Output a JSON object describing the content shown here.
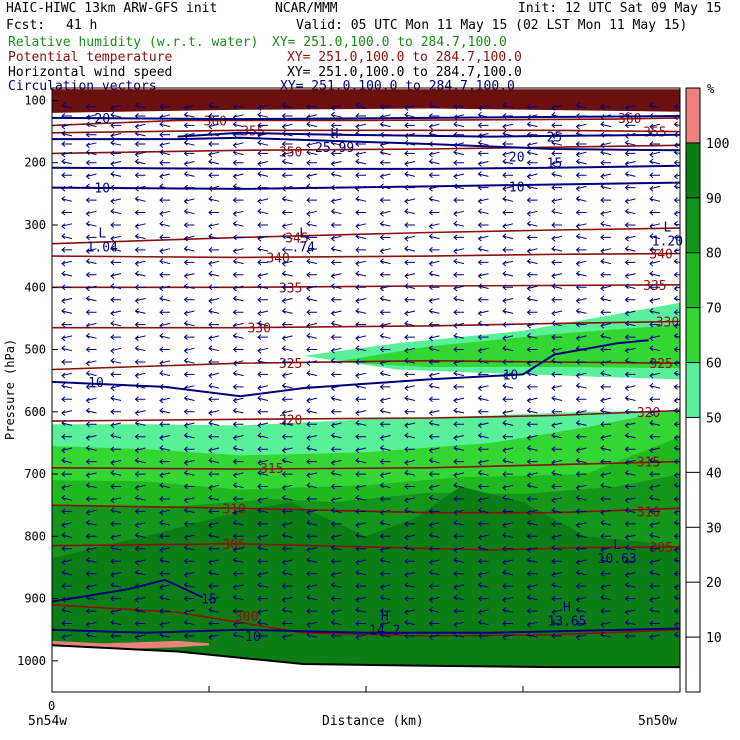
{
  "header": {
    "model": "HAIC-HIWC 13km ARW-GFS init",
    "org": "NCAR/MMM",
    "init": "Init: 12 UTC Sat 09 May 15",
    "fcst_label": "Fcst:",
    "fcst_value": "41 h",
    "valid": "Valid: 05 UTC Mon 11 May 15 (02 LST Mon 11 May 15)"
  },
  "fields": [
    {
      "name": "Relative humidity (w.r.t. water)",
      "xy": "XY= 251.0,100.0 to 284.7,100.0",
      "color": "#1a8c1a"
    },
    {
      "name": "Potential temperature",
      "xy": "XY= 251.0,100.0 to 284.7,100.0",
      "color": "#8b1010"
    },
    {
      "name": "Horizontal wind speed",
      "xy": "XY= 251.0,100.0 to 284.7,100.0",
      "color": "#000000"
    },
    {
      "name": "Circulation vectors",
      "xy": "XY= 251.0,100.0 to 284.7,100.0",
      "color": "#00007a"
    }
  ],
  "chart_data": {
    "type": "heatmap",
    "ylabel": "Pressure (hPa)",
    "xlabel": "Distance (km)",
    "x_range": [
      0,
      1
    ],
    "y_range": [
      1050,
      80
    ],
    "y_ticks": [
      100,
      200,
      300,
      400,
      500,
      600,
      700,
      800,
      900,
      1000
    ],
    "x_tick_zero": "0",
    "x_left_label": "5n54w",
    "x_right_label": "5n50w",
    "colorbar": {
      "unit": "%",
      "levels": [
        10,
        20,
        30,
        40,
        50,
        60,
        70,
        80,
        90,
        100
      ],
      "colors": [
        "#ffffff",
        "#ffffff",
        "#ffffff",
        "#ffffff",
        "#ffffff",
        "#5af09a",
        "#34d634",
        "#1fb81f",
        "#13961a",
        "#0b7d14",
        "#f08080"
      ]
    },
    "rh_regions": [
      {
        "level": 50,
        "color": "#5af09a",
        "top": [
          [
            0.0,
            620
          ],
          [
            0.15,
            620
          ],
          [
            0.3,
            622
          ],
          [
            0.5,
            612
          ],
          [
            0.7,
            606
          ],
          [
            0.85,
            600
          ],
          [
            1.0,
            598
          ]
        ]
      },
      {
        "level": 50,
        "color": "#5af09a",
        "top": [
          [
            0.4,
            510
          ],
          [
            0.55,
            490
          ],
          [
            0.75,
            470
          ],
          [
            1.0,
            425
          ]
        ],
        "bottom": [
          [
            0.4,
            510
          ],
          [
            0.55,
            532
          ],
          [
            0.75,
            540
          ],
          [
            1.0,
            548
          ]
        ]
      },
      {
        "level": 60,
        "color": "#34d634",
        "top": [
          [
            0.0,
            655
          ],
          [
            0.15,
            660
          ],
          [
            0.3,
            670
          ],
          [
            0.5,
            665
          ],
          [
            0.7,
            650
          ],
          [
            0.85,
            625
          ],
          [
            1.0,
            595
          ]
        ]
      },
      {
        "level": 60,
        "color": "#34d634",
        "top": [
          [
            0.45,
            520
          ],
          [
            0.6,
            495
          ],
          [
            0.8,
            475
          ],
          [
            1.0,
            460
          ]
        ],
        "bottom": [
          [
            0.45,
            520
          ],
          [
            0.6,
            528
          ],
          [
            0.8,
            528
          ],
          [
            1.0,
            530
          ]
        ]
      },
      {
        "level": 70,
        "color": "#1fb81f",
        "top": [
          [
            0.0,
            710
          ],
          [
            0.15,
            712
          ],
          [
            0.3,
            725
          ],
          [
            0.5,
            718
          ],
          [
            0.65,
            705
          ],
          [
            0.85,
            700
          ],
          [
            1.0,
            640
          ]
        ]
      },
      {
        "level": 80,
        "color": "#13961a",
        "top": [
          [
            0.0,
            750
          ],
          [
            0.2,
            752
          ],
          [
            0.35,
            740
          ],
          [
            0.45,
            745
          ],
          [
            0.6,
            730
          ],
          [
            0.75,
            732
          ],
          [
            0.9,
            720
          ],
          [
            1.0,
            700
          ]
        ]
      },
      {
        "level": 90,
        "color": "#0b7d14",
        "top": [
          [
            0.0,
            835
          ],
          [
            0.15,
            800
          ],
          [
            0.3,
            760
          ],
          [
            0.38,
            745
          ],
          [
            0.5,
            800
          ],
          [
            0.58,
            770
          ],
          [
            0.65,
            720
          ],
          [
            0.75,
            745
          ],
          [
            0.85,
            800
          ],
          [
            1.0,
            815
          ]
        ]
      },
      {
        "level": 100,
        "color": "#f08080",
        "top": [
          [
            0.0,
            968
          ],
          [
            0.08,
            972
          ],
          [
            0.2,
            968
          ],
          [
            0.25,
            972
          ]
        ],
        "bottom": [
          [
            0.0,
            985
          ],
          [
            0.08,
            982
          ],
          [
            0.2,
            978
          ],
          [
            0.25,
            975
          ]
        ]
      },
      {
        "level": 100,
        "color": "#6b0f0f",
        "top": [
          [
            0.0,
            82
          ],
          [
            1.0,
            82
          ]
        ],
        "bottom": [
          [
            0.0,
            120
          ],
          [
            0.3,
            115
          ],
          [
            0.6,
            113
          ],
          [
            1.0,
            118
          ]
        ]
      }
    ],
    "terrain_surface": [
      [
        0.0,
        975
      ],
      [
        0.2,
        985
      ],
      [
        0.4,
        1005
      ],
      [
        0.6,
        1008
      ],
      [
        0.8,
        1010
      ],
      [
        1.0,
        1010
      ]
    ],
    "theta_contours": [
      {
        "value": 300,
        "points": [
          [
            0.0,
            910
          ],
          [
            0.2,
            922
          ],
          [
            0.4,
            955
          ],
          [
            0.6,
            960
          ],
          [
            0.8,
            958
          ],
          [
            1.0,
            950
          ]
        ],
        "label_pos": [
          0.31,
          928
        ]
      },
      {
        "value": 305,
        "points": [
          [
            0.0,
            815
          ],
          [
            0.3,
            812
          ],
          [
            0.5,
            817
          ],
          [
            0.7,
            822
          ],
          [
            0.85,
            818
          ],
          [
            1.0,
            817
          ]
        ],
        "label_pos": [
          0.29,
          812
        ],
        "label_pos2": [
          0.97,
          817
        ]
      },
      {
        "value": 310,
        "points": [
          [
            0.0,
            750
          ],
          [
            0.3,
            755
          ],
          [
            0.6,
            762
          ],
          [
            0.8,
            762
          ],
          [
            1.0,
            755
          ]
        ],
        "label_pos": [
          0.29,
          755
        ],
        "label_pos2": [
          0.95,
          760
        ]
      },
      {
        "value": 315,
        "points": [
          [
            0.0,
            690
          ],
          [
            0.3,
            692
          ],
          [
            0.6,
            690
          ],
          [
            0.8,
            685
          ],
          [
            1.0,
            680
          ]
        ],
        "label_pos": [
          0.35,
          690
        ],
        "label_pos2": [
          0.95,
          680
        ]
      },
      {
        "value": 320,
        "points": [
          [
            0.0,
            615
          ],
          [
            0.3,
            612
          ],
          [
            0.6,
            610
          ],
          [
            0.8,
            606
          ],
          [
            1.0,
            598
          ]
        ],
        "label_pos": [
          0.38,
          612
        ],
        "label_pos2": [
          0.95,
          600
        ]
      },
      {
        "value": 325,
        "points": [
          [
            0.0,
            532
          ],
          [
            0.3,
            522
          ],
          [
            0.6,
            518
          ],
          [
            0.8,
            520
          ],
          [
            1.0,
            522
          ]
        ],
        "label_pos": [
          0.38,
          522
        ],
        "label_pos2": [
          0.97,
          522
        ]
      },
      {
        "value": 330,
        "points": [
          [
            0.0,
            465
          ],
          [
            0.3,
            465
          ],
          [
            0.6,
            462
          ],
          [
            0.8,
            458
          ],
          [
            1.0,
            455
          ]
        ],
        "label_pos": [
          0.33,
          465
        ],
        "label_pos2": [
          0.98,
          455
        ]
      },
      {
        "value": 335,
        "points": [
          [
            0.0,
            400
          ],
          [
            0.3,
            400
          ],
          [
            0.6,
            398
          ],
          [
            0.8,
            397
          ],
          [
            1.0,
            396
          ]
        ],
        "label_pos": [
          0.38,
          400
        ],
        "label_pos2": [
          0.96,
          396
        ]
      },
      {
        "value": 340,
        "points": [
          [
            0.0,
            350
          ],
          [
            0.3,
            352
          ],
          [
            0.6,
            350
          ],
          [
            0.8,
            347
          ],
          [
            1.0,
            346
          ]
        ],
        "label_pos": [
          0.36,
          352
        ],
        "label_pos2": [
          0.97,
          346
        ]
      },
      {
        "value": 345,
        "points": [
          [
            0.0,
            330
          ],
          [
            0.3,
            320
          ],
          [
            0.6,
            312
          ],
          [
            0.8,
            308
          ],
          [
            1.0,
            305
          ]
        ],
        "label_pos": [
          0.39,
          320
        ]
      },
      {
        "value": 350,
        "points": [
          [
            0.0,
            185
          ],
          [
            0.3,
            180
          ],
          [
            0.6,
            178
          ],
          [
            0.8,
            175
          ],
          [
            1.0,
            172
          ]
        ],
        "label_pos": [
          0.38,
          182
        ]
      },
      {
        "value": 355,
        "points": [
          [
            0.0,
            152
          ],
          [
            0.3,
            148
          ],
          [
            0.6,
            148
          ],
          [
            0.8,
            148
          ],
          [
            1.0,
            150
          ]
        ],
        "label_pos": [
          0.32,
          148
        ],
        "label_pos2": [
          0.96,
          150
        ]
      },
      {
        "value": 360,
        "points": [
          [
            0.0,
            140
          ],
          [
            0.2,
            132
          ],
          [
            0.5,
            132
          ],
          [
            0.9,
            130
          ],
          [
            1.0,
            128
          ]
        ],
        "label_pos": [
          0.26,
          132
        ],
        "label_pos2": [
          0.92,
          128
        ]
      }
    ],
    "wind_contours": [
      {
        "value": 20,
        "points": [
          [
            0.0,
            128
          ],
          [
            0.3,
            130
          ],
          [
            0.6,
            128
          ],
          [
            1.0,
            125
          ]
        ],
        "label_pos": [
          0.08,
          128
        ]
      },
      {
        "value": 20,
        "points": [
          [
            0.0,
            162
          ],
          [
            0.2,
            162
          ],
          [
            0.3,
            160
          ],
          [
            0.6,
            170
          ],
          [
            0.8,
            178
          ],
          [
            1.0,
            180
          ]
        ],
        "label_pos": [
          0.74,
          190
        ]
      },
      {
        "value": 25,
        "points": [
          [
            0.2,
            158
          ],
          [
            0.3,
            152
          ],
          [
            0.45,
            155
          ],
          [
            0.7,
            158
          ],
          [
            1.0,
            155
          ]
        ],
        "label_pos": [
          0.8,
          158
        ]
      },
      {
        "value": 15,
        "points": [
          [
            0.0,
            208
          ],
          [
            0.3,
            210
          ],
          [
            0.6,
            210
          ],
          [
            0.8,
            208
          ],
          [
            1.0,
            205
          ]
        ],
        "label_pos": [
          0.8,
          200
        ]
      },
      {
        "value": 10,
        "points": [
          [
            0.0,
            240
          ],
          [
            0.3,
            242
          ],
          [
            0.6,
            238
          ],
          [
            0.8,
            235
          ],
          [
            1.0,
            232
          ]
        ],
        "label_pos": [
          0.08,
          240
        ],
        "label_pos2": [
          0.74,
          238
        ]
      },
      {
        "value": 10,
        "points": [
          [
            0.0,
            552
          ],
          [
            0.18,
            560
          ],
          [
            0.3,
            575
          ],
          [
            0.4,
            562
          ],
          [
            0.6,
            548
          ],
          [
            0.75,
            540
          ],
          [
            0.8,
            508
          ],
          [
            0.9,
            490
          ],
          [
            0.95,
            485
          ]
        ],
        "label_pos": [
          0.07,
          552
        ],
        "label_pos2": [
          0.73,
          540
        ]
      },
      {
        "value": 15,
        "points": [
          [
            0.0,
            905
          ],
          [
            0.12,
            885
          ],
          [
            0.18,
            870
          ],
          [
            0.24,
            898
          ]
        ],
        "label_pos": [
          0.25,
          900
        ]
      },
      {
        "value": 10,
        "points": [
          [
            0.0,
            950
          ],
          [
            0.15,
            955
          ],
          [
            0.3,
            950
          ],
          [
            0.5,
            955
          ],
          [
            0.7,
            955
          ],
          [
            1.0,
            948
          ]
        ],
        "label_pos": [
          0.32,
          960
        ]
      }
    ],
    "extrema": [
      {
        "type": "H",
        "value": "25.99",
        "x": 0.45,
        "p": 170
      },
      {
        "type": "L",
        "value": "1.04",
        "x": 0.08,
        "p": 330
      },
      {
        "type": "L",
        "value": ".74",
        "x": 0.4,
        "p": 330
      },
      {
        "type": "L",
        "value": "1.20",
        "x": 0.98,
        "p": 320
      },
      {
        "type": "L",
        "value": "10.63",
        "x": 0.9,
        "p": 830
      },
      {
        "type": "H",
        "value": "14.2",
        "x": 0.53,
        "p": 945
      },
      {
        "type": "H",
        "value": "13.65",
        "x": 0.82,
        "p": 930
      }
    ],
    "vector_rows_hpa": [
      110,
      125,
      140,
      155,
      170,
      185,
      200,
      220,
      240,
      260,
      280,
      300,
      320,
      340,
      360,
      380,
      400,
      420,
      440,
      460,
      480,
      500,
      520,
      540,
      560,
      580,
      600,
      620,
      640,
      660,
      680,
      700,
      720,
      740,
      760,
      780,
      800,
      820,
      840,
      860,
      880,
      900,
      920,
      940,
      960
    ]
  }
}
